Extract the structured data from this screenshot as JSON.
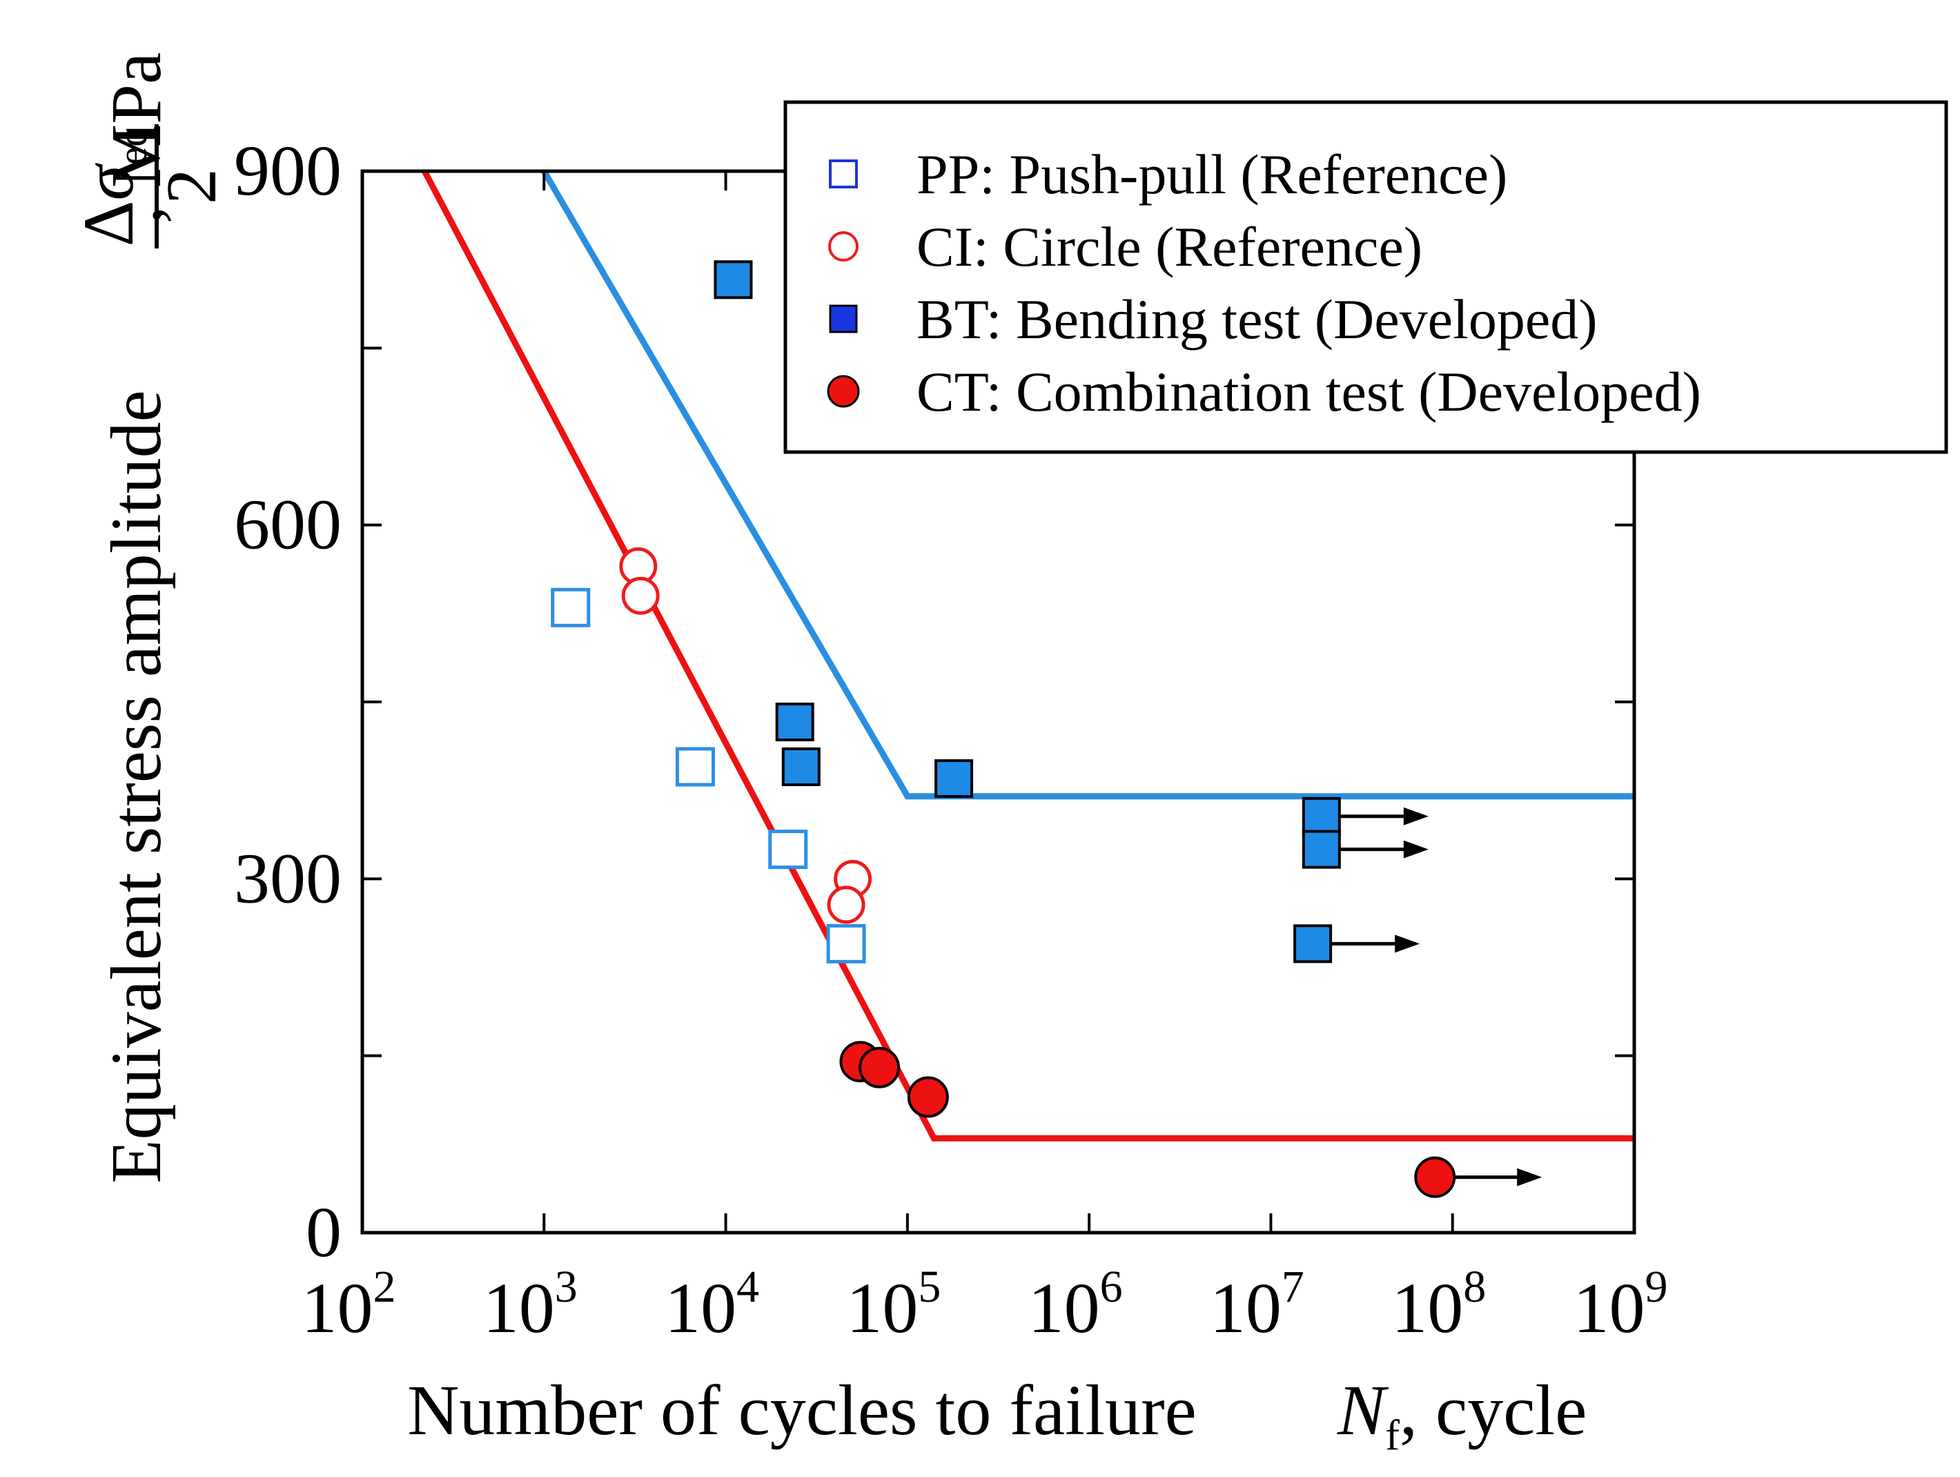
{
  "chart_data": {
    "type": "scatter",
    "xscale": "log",
    "xlim_exponent": [
      2,
      9
    ],
    "ylim": [
      0,
      900
    ],
    "x_ticks": [
      {
        "base": "10",
        "exp": "2",
        "value": 100
      },
      {
        "base": "10",
        "exp": "3",
        "value": 1000
      },
      {
        "base": "10",
        "exp": "4",
        "value": 10000
      },
      {
        "base": "10",
        "exp": "5",
        "value": 100000
      },
      {
        "base": "10",
        "exp": "6",
        "value": 1000000
      },
      {
        "base": "10",
        "exp": "7",
        "value": 10000000
      },
      {
        "base": "10",
        "exp": "8",
        "value": 100000000
      },
      {
        "base": "10",
        "exp": "9",
        "value": 1000000000
      }
    ],
    "y_ticks": [
      {
        "label": "0",
        "value": 0
      },
      {
        "label": "300",
        "value": 300
      },
      {
        "label": "600",
        "value": 600
      },
      {
        "label": "900",
        "value": 900
      }
    ],
    "y_minor_ticks": [
      150,
      450,
      750
    ],
    "xlabel": {
      "main": "Number of cycles to failure",
      "var": "N",
      "sub": "f",
      "unit": ", cycle"
    },
    "ylabel": {
      "main": "Equivalent stress amplitude",
      "delta": "Δ",
      "sigma": "σ",
      "sub": "eq",
      "denominator": "2",
      "unit": ", MPa"
    },
    "legend": {
      "position": "top-right",
      "entries": [
        {
          "label": "PP: Push-pull (Reference)",
          "marker": "open-square",
          "color": "#1f35d6"
        },
        {
          "label": "CI: Circle (Reference)",
          "marker": "open-circle",
          "color": "#ee1c1c"
        },
        {
          "label": "BT: Bending test (Developed)",
          "marker": "filled-square",
          "color": "#1a36e0"
        },
        {
          "label": "CT: Combination test (Developed)",
          "marker": "filled-circle",
          "color": "#ee1111"
        }
      ]
    },
    "series": [
      {
        "name": "PP",
        "marker": "open-square",
        "color": "#2f8ee6",
        "points": [
          {
            "x": 1400,
            "y": 530
          },
          {
            "x": 6800,
            "y": 395
          },
          {
            "x": 22000,
            "y": 325
          },
          {
            "x": 46000,
            "y": 245
          }
        ]
      },
      {
        "name": "CI",
        "marker": "open-circle",
        "color": "#ee1c1c",
        "points": [
          {
            "x": 3300,
            "y": 565
          },
          {
            "x": 3400,
            "y": 540
          },
          {
            "x": 50000,
            "y": 300
          },
          {
            "x": 46000,
            "y": 278
          }
        ]
      },
      {
        "name": "BT",
        "marker": "filled-square",
        "color": "#1e8ae6",
        "points": [
          {
            "x": 11000,
            "y": 808,
            "runout": false
          },
          {
            "x": 24000,
            "y": 433,
            "runout": false
          },
          {
            "x": 26000,
            "y": 395,
            "runout": false
          },
          {
            "x": 180000,
            "y": 385,
            "runout": false
          },
          {
            "x": 19000000,
            "y": 353,
            "runout": true
          },
          {
            "x": 19000000,
            "y": 325,
            "runout": true
          },
          {
            "x": 17000000,
            "y": 245,
            "runout": true
          }
        ]
      },
      {
        "name": "CT",
        "marker": "filled-circle",
        "color": "#ee1111",
        "points": [
          {
            "x": 55000,
            "y": 145,
            "runout": false
          },
          {
            "x": 70000,
            "y": 140,
            "runout": false
          },
          {
            "x": 130000,
            "y": 115,
            "runout": false
          },
          {
            "x": 80000000,
            "y": 47,
            "runout": true
          }
        ]
      }
    ],
    "lines": [
      {
        "name": "BT fit",
        "color": "#2a8fe0",
        "points": [
          {
            "x": 1000,
            "y": 900
          },
          {
            "x": 100000,
            "y": 370
          },
          {
            "x": 1000000000,
            "y": 370
          }
        ]
      },
      {
        "name": "CT fit",
        "color": "#ee1111",
        "points": [
          {
            "x": 220,
            "y": 900
          },
          {
            "x": 140000,
            "y": 80
          },
          {
            "x": 1000000000,
            "y": 80
          }
        ]
      }
    ]
  }
}
